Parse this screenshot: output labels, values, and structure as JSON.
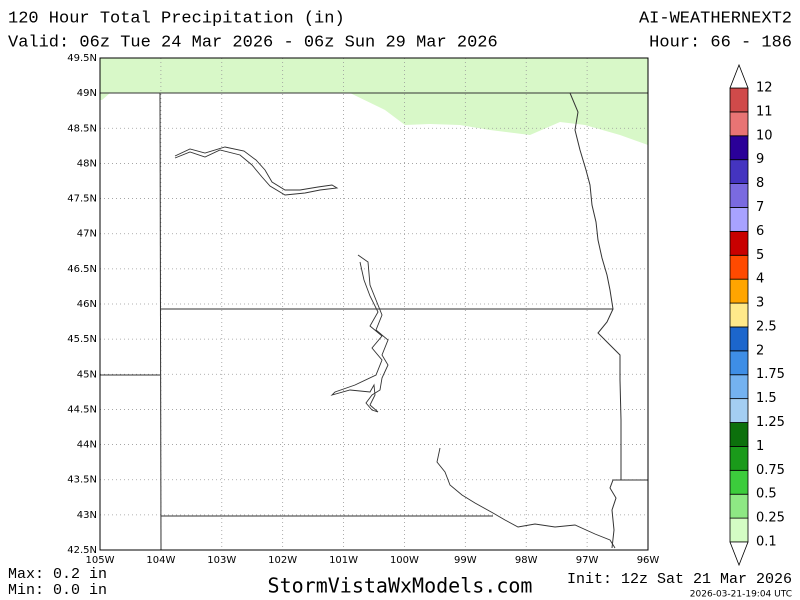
{
  "header": {
    "title": "120 Hour Total Precipitation (in)",
    "model": "AI-WEATHERNEXT2",
    "valid": "Valid: 06z Tue 24 Mar 2026 - 06z Sun 29 Mar 2026",
    "hour": "Hour: 66 - 186"
  },
  "map": {
    "lat_labels": [
      "49.5N",
      "49N",
      "48.5N",
      "48N",
      "47.5N",
      "47N",
      "46.5N",
      "46N",
      "45.5N",
      "45N",
      "44.5N",
      "44N",
      "43.5N",
      "43N",
      "42.5N"
    ],
    "lon_labels": [
      "105W",
      "104W",
      "103W",
      "102W",
      "101W",
      "100W",
      "99W",
      "98W",
      "97W",
      "96W"
    ]
  },
  "colorbar": {
    "levels": [
      0.1,
      0.25,
      0.5,
      0.75,
      1,
      1.25,
      1.5,
      1.75,
      2,
      2.5,
      3,
      4,
      5,
      6,
      7,
      8,
      9,
      10,
      11,
      12
    ],
    "colors": [
      "#d4fcc4",
      "#8ee884",
      "#3ccc3c",
      "#1a9a1a",
      "#0c700c",
      "#a4cef2",
      "#74b2f0",
      "#3e8ee6",
      "#1c66cc",
      "#ffe98a",
      "#ffa500",
      "#ff4a00",
      "#c80000",
      "#a8a2ff",
      "#7a6ae0",
      "#4434c0",
      "#2a0098",
      "#e87474",
      "#d04a4a",
      "#ac2626"
    ]
  },
  "footer": {
    "max": "Max: 0.2 in",
    "min": "Min: 0.0 in",
    "site": "StormVistaWxModels.com",
    "init": "Init: 12z Sat 21 Mar 2026",
    "stamp": "2026-03-21-19:04 UTC"
  }
}
